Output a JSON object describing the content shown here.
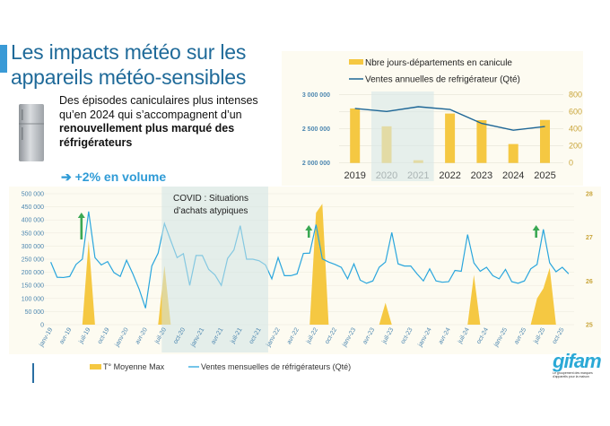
{
  "header": {
    "title_line1": "Les impacts météo sur les",
    "title_line2": "appareils météo-sensibles"
  },
  "description": {
    "text_regular": "Des épisodes caniculaires plus intenses qu’en 2024 qui s’accompagnent d’un ",
    "text_bold": "renouvellement plus marqué des réfrigérateurs",
    "highlight_arrow": "➔",
    "highlight": "+2% en volume",
    "icon": "refrigerator-icon"
  },
  "colors": {
    "title": "#1f6a99",
    "bar_yellow": "#f5c842",
    "line_dark_blue": "#1d6696",
    "line_light_blue": "#2aa6dd",
    "covid_shade": "#dde9e6",
    "arrow_green": "#3aa853"
  },
  "chart_data": [
    {
      "type": "bar+line",
      "categories": [
        "2019",
        "2020",
        "2021",
        "2022",
        "2023",
        "2024",
        "2025"
      ],
      "series": [
        {
          "name": "Nbre jours-départements en canicule",
          "type": "bar",
          "axis": "right",
          "values": [
            640,
            430,
            32,
            580,
            502,
            222,
            505
          ]
        },
        {
          "name": "Ventes annuelles de refrigérateur (Qté)",
          "type": "line",
          "axis": "left",
          "values": [
            2800000,
            2755000,
            2825000,
            2785000,
            2580000,
            2480000,
            2535000
          ]
        }
      ],
      "y_left": {
        "ylim": [
          2000000,
          3000000
        ],
        "ticks": [
          "2 000 000",
          "2 500 000",
          "3 000 000"
        ]
      },
      "y_right": {
        "ylim": [
          0,
          800
        ],
        "ticks": [
          "0",
          "200",
          "400",
          "600",
          "800"
        ]
      },
      "shaded_categories": [
        "2020",
        "2021"
      ],
      "legend": "top",
      "grid": true
    },
    {
      "type": "area+line",
      "x": [
        "janv-19",
        "févr-19",
        "mars-19",
        "avr-19",
        "mai-19",
        "juin-19",
        "juil-19",
        "août-19",
        "sept-19",
        "oct-19",
        "nov-19",
        "déc-19",
        "janv-20",
        "févr-20",
        "mars-20",
        "avr-20",
        "mai-20",
        "juin-20",
        "juil-20",
        "août-20",
        "sept-20",
        "oct-20",
        "nov-20",
        "déc-20",
        "janv-21",
        "févr-21",
        "mars-21",
        "avr-21",
        "mai-21",
        "juin-21",
        "juil-21",
        "août-21",
        "sept-21",
        "oct-21",
        "nov-21",
        "déc-21",
        "janv-22",
        "févr-22",
        "mars-22",
        "avr-22",
        "mai-22",
        "juin-22",
        "juil-22",
        "août-22",
        "sept-22",
        "oct-22",
        "nov-22",
        "déc-22",
        "janv-23",
        "févr-23",
        "mars-23",
        "avr-23",
        "mai-23",
        "juin-23",
        "juil-23",
        "août-23",
        "sept-23",
        "oct-23",
        "nov-23",
        "déc-23",
        "janv-24",
        "févr-24",
        "mars-24",
        "avr-24",
        "mai-24",
        "juin-24",
        "juil-24",
        "août-24",
        "sept-24",
        "oct-24",
        "nov-24",
        "déc-24",
        "janv-25",
        "févr-25",
        "mars-25",
        "avr-25",
        "mai-25",
        "juin-25",
        "juil-25",
        "août-25",
        "sept-25",
        "oct-25",
        "nov-25"
      ],
      "x_tick_labels": [
        "janv-19",
        "avr-19",
        "juil-19",
        "oct-19",
        "janv-20",
        "avr-20",
        "juil-20",
        "oct-20",
        "janv-21",
        "avr-21",
        "juil-21",
        "oct-21",
        "janv-22",
        "avr-22",
        "juil-22",
        "oct-22",
        "janv-23",
        "avr-23",
        "juil-23",
        "oct-23",
        "janv-24",
        "avr-24",
        "juil-24",
        "oct-24",
        "janv-25",
        "avr-25",
        "juil-25",
        "oct-25"
      ],
      "series": [
        {
          "name": "T° Moyenne Max",
          "type": "area",
          "axis": "right",
          "values": [
            25,
            25,
            25,
            25,
            25,
            25,
            26.93,
            25,
            25,
            25,
            25,
            25,
            25,
            25,
            25,
            25,
            25,
            25,
            26.35,
            25,
            25,
            25,
            25,
            25,
            25,
            25,
            25,
            25,
            25,
            25,
            25,
            25,
            25,
            25,
            25,
            25,
            25,
            25,
            25,
            25,
            25,
            25,
            27.56,
            27.77,
            25,
            25,
            25,
            25,
            25,
            25,
            25,
            25,
            25,
            25.5,
            25,
            25,
            25,
            25,
            25,
            25,
            25,
            25,
            25,
            25,
            25,
            25,
            25,
            26.14,
            25,
            25,
            25,
            25,
            25,
            25,
            25,
            25,
            25,
            25.6,
            25.83,
            26.3,
            25,
            25,
            25
          ]
        },
        {
          "name": "Ventes mensuelles de réfrigérateurs (Qté)",
          "type": "line",
          "axis": "left",
          "values": [
            239000,
            181000,
            180000,
            184000,
            230000,
            250000,
            432000,
            256000,
            228000,
            241000,
            199000,
            184000,
            246000,
            194000,
            135000,
            63000,
            224000,
            273000,
            386000,
            321000,
            256000,
            271000,
            150000,
            264000,
            264000,
            211000,
            190000,
            150000,
            253000,
            285000,
            378000,
            250000,
            250000,
            244000,
            228000,
            175000,
            256000,
            187000,
            187000,
            194000,
            272000,
            273000,
            382000,
            251000,
            239000,
            230000,
            219000,
            175000,
            232000,
            170000,
            158000,
            167000,
            219000,
            239000,
            352000,
            232000,
            224000,
            224000,
            194000,
            167000,
            213000,
            167000,
            162000,
            164000,
            207000,
            204000,
            344000,
            236000,
            204000,
            219000,
            187000,
            175000,
            211000,
            164000,
            158000,
            167000,
            213000,
            230000,
            364000,
            236000,
            202000,
            219000,
            194000
          ]
        }
      ],
      "y_left": {
        "ylim": [
          0,
          500000
        ],
        "ticks": [
          "0",
          "50 000",
          "100 000",
          "150 000",
          "200 000",
          "250 000",
          "300 000",
          "350 000",
          "400 000",
          "450 000",
          "500 000"
        ]
      },
      "y_right": {
        "ylim": [
          25,
          28
        ],
        "ticks": [
          "25",
          "26",
          "27",
          "28"
        ]
      },
      "annotation": {
        "text_line1": "COVID : Situations",
        "text_line2": "d’achats atypiques",
        "from": "juil-20",
        "to": "nov-21"
      },
      "arrows": [
        "juin-19",
        "juin-22",
        "juin-25"
      ],
      "legend": "bottom",
      "grid": true
    }
  ],
  "logo": {
    "word": "gifam",
    "subtitle": "Le groupement des marques d'appareils pour la maison"
  }
}
